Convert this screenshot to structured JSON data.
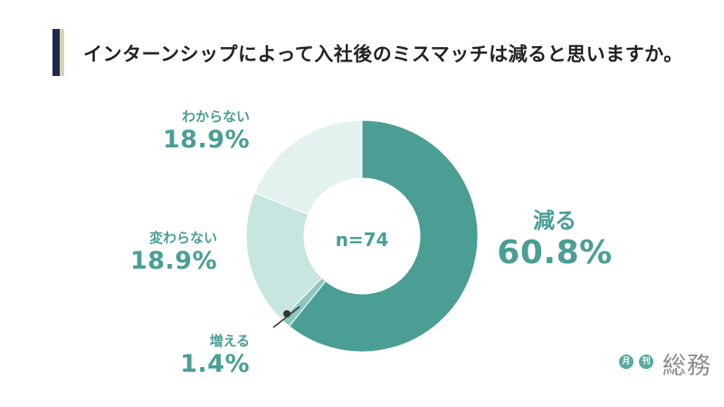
{
  "title": "インターンシップによって入社後のミスマッチは減ると思いますか。",
  "chart_data": {
    "type": "pie",
    "donut": true,
    "title": "インターンシップによって入社後のミスマッチは減ると思いますか。",
    "center_label": "n=74",
    "slices": [
      {
        "name": "減る",
        "value": 60.8,
        "label": "60.8%",
        "color": "#4a9e94"
      },
      {
        "name": "増える",
        "value": 1.4,
        "label": "1.4%",
        "color": "#8dc8bf"
      },
      {
        "name": "変わらない",
        "value": 18.9,
        "label": "18.9%",
        "color": "#c8e6e0"
      },
      {
        "name": "わからない",
        "value": 18.9,
        "label": "18.9%",
        "color": "#e4f2ef"
      }
    ]
  },
  "logo": {
    "month": "月",
    "issue": "刊",
    "brand": "総務"
  }
}
